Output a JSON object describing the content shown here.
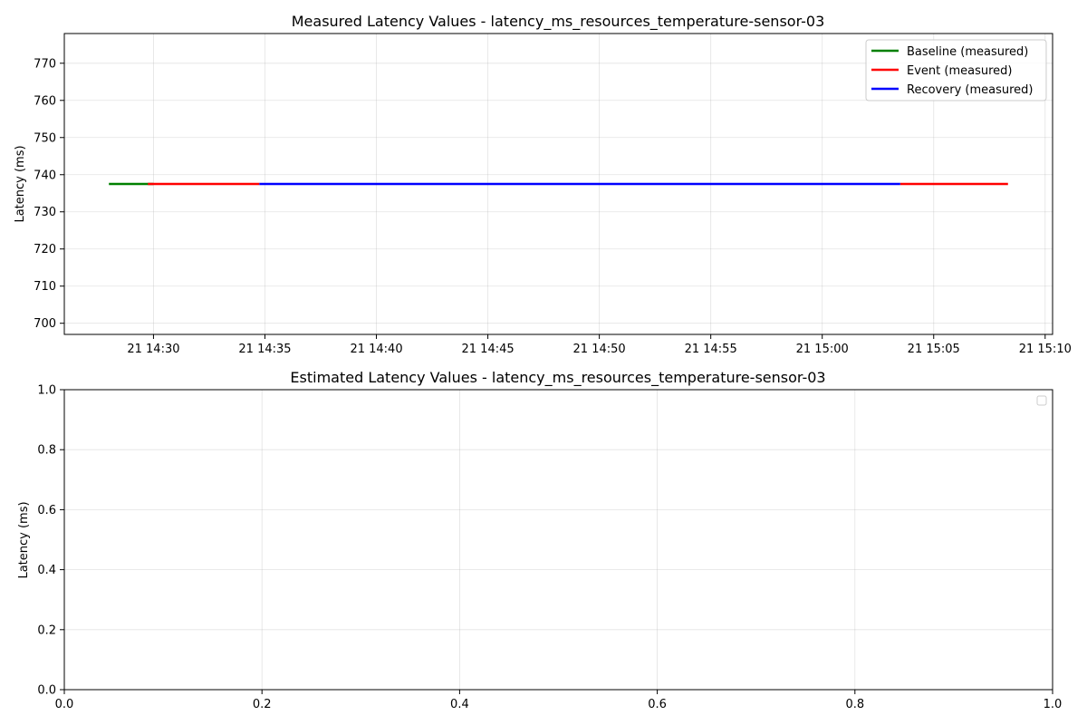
{
  "chart_data": [
    {
      "type": "line",
      "title": "Measured Latency Values - latency_ms_resources_temperature-sensor-03",
      "ylabel": "Latency (ms)",
      "xlabel": "",
      "xlim": [
        "2024-01-21 14:26:00",
        "2024-01-21 15:10:20"
      ],
      "ylim": [
        697,
        778
      ],
      "xticks": [
        "21 14:30",
        "21 14:35",
        "21 14:40",
        "21 14:45",
        "21 14:50",
        "21 14:55",
        "21 15:00",
        "21 15:05",
        "21 15:10"
      ],
      "yticks": [
        700,
        710,
        720,
        730,
        740,
        750,
        760,
        770
      ],
      "grid": true,
      "legend_position": "top-right",
      "series": [
        {
          "name": "Baseline (measured)",
          "color": "#008000",
          "segments": [
            [
              [
                "2024-01-21 14:28:00",
                737.5
              ],
              [
                "2024-01-21 14:30:00",
                737.5
              ]
            ]
          ]
        },
        {
          "name": "Event (measured)",
          "color": "#ff0000",
          "segments": [
            [
              [
                "2024-01-21 14:29:45",
                737.5
              ],
              [
                "2024-01-21 14:34:45",
                737.5
              ]
            ],
            [
              [
                "2024-01-21 15:03:30",
                737.5
              ],
              [
                "2024-01-21 15:08:20",
                737.5
              ]
            ]
          ]
        },
        {
          "name": "Recovery (measured)",
          "color": "#0000ff",
          "segments": [
            [
              [
                "2024-01-21 14:34:45",
                737.5
              ],
              [
                "2024-01-21 15:03:30",
                737.5
              ]
            ]
          ]
        }
      ]
    },
    {
      "type": "line",
      "title": "Estimated Latency Values - latency_ms_resources_temperature-sensor-03",
      "ylabel": "Latency (ms)",
      "xlabel": "",
      "xlim": [
        0,
        1
      ],
      "ylim": [
        0,
        1
      ],
      "xticks": [
        "0.0",
        "0.2",
        "0.4",
        "0.6",
        "0.8",
        "1.0"
      ],
      "yticks": [
        "0.0",
        "0.2",
        "0.4",
        "0.6",
        "0.8",
        "1.0"
      ],
      "grid": true,
      "legend_position": "top-right",
      "series": []
    }
  ]
}
